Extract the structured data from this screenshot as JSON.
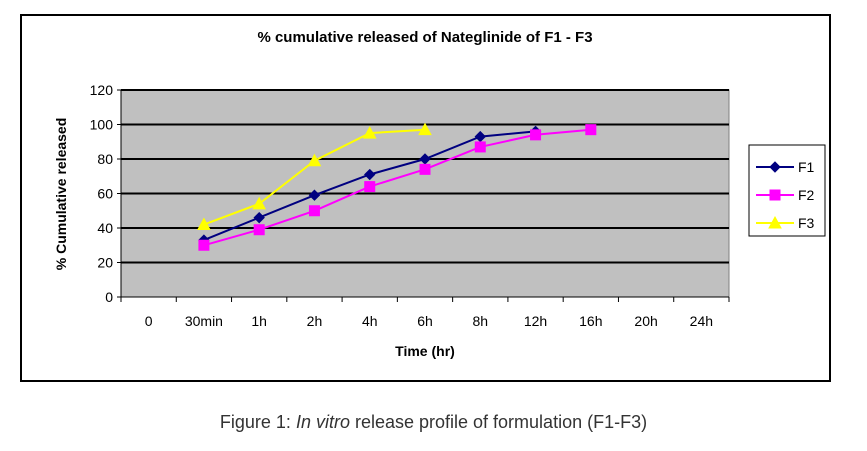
{
  "chart_data": {
    "type": "line",
    "title": "% cumulative released of Nateglinide of F1 - F3",
    "xlabel": "Time (hr)",
    "ylabel": "% Cumulative released",
    "categories": [
      "0",
      "30min",
      "1h",
      "2h",
      "4h",
      "6h",
      "8h",
      "12h",
      "16h",
      "20h",
      "24h"
    ],
    "ylim": [
      0,
      120
    ],
    "yticks": [
      0,
      20,
      40,
      60,
      80,
      100,
      120
    ],
    "grid": true,
    "legend": "right",
    "series": [
      {
        "name": "F1",
        "color": "#000080",
        "marker": "diamond",
        "values": [
          null,
          33,
          46,
          59,
          71,
          80,
          93,
          96,
          null,
          null,
          null
        ]
      },
      {
        "name": "F2",
        "color": "#ff00ff",
        "marker": "square",
        "values": [
          null,
          30,
          39,
          50,
          64,
          74,
          87,
          94,
          97,
          null,
          null
        ]
      },
      {
        "name": "F3",
        "color": "#ffff00",
        "marker": "triangle",
        "values": [
          null,
          42,
          54,
          79,
          95,
          97,
          null,
          null,
          null,
          null,
          null
        ]
      }
    ]
  },
  "caption": {
    "prefix": "Figure 1: ",
    "italic": "In vitro",
    "suffix": " release profile of formulation (F1-F3)"
  }
}
